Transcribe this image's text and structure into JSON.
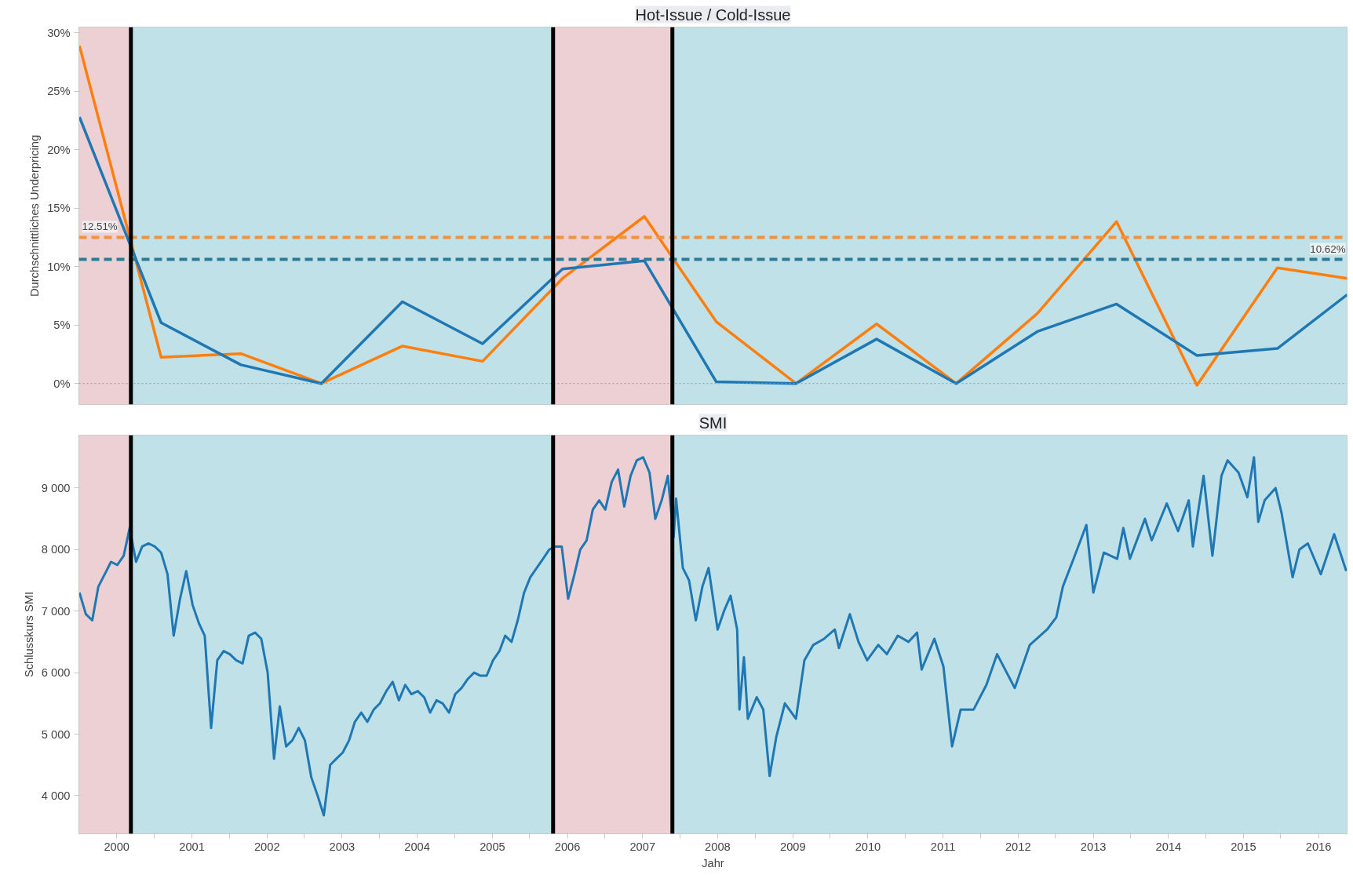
{
  "chart_data": [
    {
      "type": "line",
      "title": "Hot-Issue / Cold-Issue",
      "ylabel": "Durchschnittliches Underpricing",
      "tick_labels": "y",
      "grid": false,
      "x": [
        "1999-07-04",
        "2000-08-04",
        "2001-08-27",
        "2002-09-22",
        "2003-10-21",
        "2004-11-14",
        "2005-12-08",
        "2007-01-10",
        "2007-12-25",
        "2009-01-16",
        "2010-02-12",
        "2011-03-06",
        "2012-04-04",
        "2013-04-24",
        "2014-05-20",
        "2015-06-15",
        "2016-05-19"
      ],
      "series": [
        {
          "color": "#ff7f0e",
          "values": [
            28.9,
            2.25,
            2.55,
            0,
            3.2,
            1.9,
            9.0,
            14.3,
            5.3,
            0,
            5.1,
            0,
            6.0,
            13.85,
            -0.15,
            9.9,
            9.0
          ]
        },
        {
          "color": "#1f77b4",
          "values": [
            22.8,
            5.2,
            1.6,
            0,
            7.0,
            3.4,
            9.8,
            10.5,
            0.15,
            0,
            3.8,
            0,
            4.45,
            6.8,
            2.4,
            3.0,
            7.6
          ]
        }
      ],
      "xlim": [
        "1999-07-01",
        "2016-05-19"
      ],
      "ylim": [
        -1.8,
        30.5
      ],
      "yticks": [
        {
          "value": 0,
          "label": "0%"
        },
        {
          "value": 5,
          "label": "5%"
        },
        {
          "value": 10,
          "label": "10%"
        },
        {
          "value": 15,
          "label": "15%"
        },
        {
          "value": 20,
          "label": "20%"
        },
        {
          "value": 25,
          "label": "25%"
        },
        {
          "value": 30,
          "label": "30%"
        }
      ],
      "bands": [
        {
          "axis": "x",
          "from": "1999-07-01",
          "to": "2000-03-10",
          "color": "#ecd0d3"
        },
        {
          "axis": "x",
          "from": "2000-03-10",
          "to": "2005-10-23",
          "color": "#c0e1e7"
        },
        {
          "axis": "x",
          "from": "2005-10-23",
          "to": "2007-05-26",
          "color": "#ecd0d3"
        },
        {
          "axis": "x",
          "from": "2007-05-26",
          "to": "2016-05-19",
          "color": "#c0e1e7"
        }
      ],
      "ref_lines": [
        {
          "axis": "y",
          "value": 12.51,
          "label": "12.51%",
          "color": "#f5913a",
          "line_style": "dashed"
        },
        {
          "axis": "y",
          "value": 10.62,
          "label": "10.62%",
          "color": "#2b7b99",
          "line_style": "dashed"
        },
        {
          "axis": "y",
          "value": 0,
          "color": "#999999",
          "line_style": "dotted"
        },
        {
          "axis": "x",
          "value": "2000-03-10",
          "color": "#000000",
          "line_style": "solid"
        },
        {
          "axis": "x",
          "value": "2005-10-23",
          "color": "#000000",
          "line_style": "solid"
        },
        {
          "axis": "x",
          "value": "2007-05-26",
          "color": "#000000",
          "line_style": "solid"
        }
      ]
    },
    {
      "type": "line",
      "title": "SMI",
      "ylabel": "Schlusskurs SMI",
      "xlabel": "Jahr",
      "grid": false,
      "x": [
        "1999-07-04",
        "1999-08-04",
        "1999-09-04",
        "1999-10-04",
        "1999-11-04",
        "1999-12-04",
        "2000-01-04",
        "2000-02-04",
        "2000-03-04",
        "2000-04-04",
        "2000-05-04",
        "2000-06-04",
        "2000-07-04",
        "2000-08-04",
        "2000-09-04",
        "2000-10-04",
        "2000-11-04",
        "2000-12-04",
        "2001-01-04",
        "2001-02-04",
        "2001-03-04",
        "2001-04-04",
        "2001-05-04",
        "2001-06-04",
        "2001-07-04",
        "2001-08-04",
        "2001-09-04",
        "2001-10-04",
        "2001-11-04",
        "2001-12-04",
        "2002-01-04",
        "2002-02-04",
        "2002-03-04",
        "2002-04-04",
        "2002-05-04",
        "2002-06-04",
        "2002-07-04",
        "2002-08-04",
        "2002-09-04",
        "2002-10-04",
        "2002-11-04",
        "2002-12-04",
        "2003-01-04",
        "2003-02-04",
        "2003-03-04",
        "2003-04-04",
        "2003-05-04",
        "2003-06-04",
        "2003-07-04",
        "2003-08-04",
        "2003-09-04",
        "2003-10-04",
        "2003-11-04",
        "2003-12-04",
        "2004-01-04",
        "2004-02-04",
        "2004-03-04",
        "2004-04-04",
        "2004-05-04",
        "2004-06-04",
        "2004-07-04",
        "2004-08-04",
        "2004-09-04",
        "2004-10-04",
        "2004-11-04",
        "2004-12-04",
        "2005-01-04",
        "2005-02-04",
        "2005-03-04",
        "2005-04-04",
        "2005-05-04",
        "2005-06-04",
        "2005-07-04",
        "2005-08-04",
        "2005-09-04",
        "2005-10-04",
        "2005-11-04",
        "2005-12-04",
        "2006-01-04",
        "2006-02-04",
        "2006-03-04",
        "2006-04-04",
        "2006-05-04",
        "2006-06-04",
        "2006-07-04",
        "2006-08-04",
        "2006-09-04",
        "2006-10-04",
        "2006-11-04",
        "2006-12-04",
        "2007-01-04",
        "2007-02-04",
        "2007-03-04",
        "2007-04-04",
        "2007-05-04",
        "2007-06-01",
        "2007-06-13",
        "2007-07-16",
        "2007-08-15",
        "2007-09-17",
        "2007-10-19",
        "2007-11-18",
        "2008-01-01",
        "2008-02-01",
        "2008-03-04",
        "2008-04-05",
        "2008-04-16",
        "2008-05-08",
        "2008-05-27",
        "2008-07-09",
        "2008-08-10",
        "2008-09-10",
        "2008-10-12",
        "2008-11-23",
        "2009-01-16",
        "2009-02-26",
        "2009-04-10",
        "2009-06-02",
        "2009-07-24",
        "2009-08-13",
        "2009-10-05",
        "2009-11-16",
        "2009-12-28",
        "2010-02-20",
        "2010-04-03",
        "2010-05-26",
        "2010-07-17",
        "2010-08-28",
        "2010-09-19",
        "2010-11-20",
        "2011-01-03",
        "2011-02-14",
        "2011-03-28",
        "2011-05-30",
        "2011-07-31",
        "2011-09-21",
        "2011-12-16",
        "2012-02-27",
        "2012-05-21",
        "2012-07-05",
        "2012-08-06",
        "2012-09-27",
        "2012-11-28",
        "2013-01-01",
        "2013-02-21",
        "2013-04-27",
        "2013-05-27",
        "2013-06-28",
        "2013-09-09",
        "2013-10-12",
        "2013-12-24",
        "2014-02-17",
        "2014-04-10",
        "2014-04-30",
        "2014-06-21",
        "2014-08-03",
        "2014-09-16",
        "2014-10-16",
        "2014-12-08",
        "2015-01-20",
        "2015-02-21",
        "2015-03-14",
        "2015-04-14",
        "2015-06-06",
        "2015-07-05",
        "2015-08-28",
        "2015-09-30",
        "2015-11-10",
        "2016-01-12",
        "2016-03-17",
        "2016-05-15"
      ],
      "series": [
        {
          "color": "#1f77b4",
          "values": [
            7300,
            6950,
            6850,
            7400,
            7600,
            7800,
            7750,
            7900,
            8350,
            7800,
            8050,
            8100,
            8050,
            7950,
            7600,
            6600,
            7200,
            7650,
            7100,
            6800,
            6600,
            5100,
            6200,
            6350,
            6300,
            6200,
            6150,
            6600,
            6650,
            6550,
            6000,
            4600,
            5450,
            4800,
            4900,
            5100,
            4900,
            4300,
            4000,
            3680,
            4500,
            4600,
            4700,
            4900,
            5200,
            5350,
            5200,
            5400,
            5500,
            5700,
            5850,
            5550,
            5800,
            5650,
            5700,
            5600,
            5350,
            5550,
            5500,
            5350,
            5650,
            5750,
            5900,
            6000,
            5950,
            5950,
            6200,
            6350,
            6600,
            6500,
            6850,
            7300,
            7550,
            7700,
            7850,
            8000,
            8050,
            8050,
            7200,
            7600,
            8000,
            8150,
            8650,
            8800,
            8650,
            9100,
            9300,
            8700,
            9200,
            9450,
            9500,
            9250,
            8500,
            8800,
            9200,
            8200,
            8830,
            7700,
            7500,
            6850,
            7400,
            7700,
            6700,
            7000,
            7250,
            6700,
            5400,
            6250,
            5250,
            5600,
            5400,
            4320,
            4950,
            5500,
            5250,
            6200,
            6450,
            6550,
            6700,
            6400,
            6950,
            6500,
            6200,
            6450,
            6300,
            6600,
            6500,
            6650,
            6050,
            6550,
            6100,
            4800,
            5400,
            5400,
            5800,
            6300,
            5750,
            6450,
            6700,
            6900,
            7400,
            7850,
            8400,
            7300,
            7950,
            7850,
            8350,
            7850,
            8500,
            8150,
            8750,
            8300,
            8800,
            8050,
            9200,
            7900,
            9200,
            9450,
            9250,
            8850,
            9500,
            8450,
            8800,
            9000,
            8600,
            7550,
            8000,
            8100,
            7600,
            8250,
            7650
          ]
        }
      ],
      "xlim": [
        "1999-07-01",
        "2016-05-19"
      ],
      "ylim": [
        3380,
        9860
      ],
      "xticks": [
        {
          "value": "2000-01-01",
          "label": "2000"
        },
        {
          "value": "2000-07-01",
          "label": null
        },
        {
          "value": "2001-01-01",
          "label": "2001"
        },
        {
          "value": "2001-07-01",
          "label": null
        },
        {
          "value": "2002-01-01",
          "label": "2002"
        },
        {
          "value": "2002-07-01",
          "label": null
        },
        {
          "value": "2003-01-01",
          "label": "2003"
        },
        {
          "value": "2003-07-01",
          "label": null
        },
        {
          "value": "2004-01-01",
          "label": "2004"
        },
        {
          "value": "2004-07-01",
          "label": null
        },
        {
          "value": "2005-01-01",
          "label": "2005"
        },
        {
          "value": "2005-07-01",
          "label": null
        },
        {
          "value": "2006-01-01",
          "label": "2006"
        },
        {
          "value": "2006-07-01",
          "label": null
        },
        {
          "value": "2007-01-01",
          "label": "2007"
        },
        {
          "value": "2007-07-01",
          "label": null
        },
        {
          "value": "2008-01-01",
          "label": "2008"
        },
        {
          "value": "2008-07-01",
          "label": null
        },
        {
          "value": "2009-01-01",
          "label": "2009"
        },
        {
          "value": "2009-07-01",
          "label": null
        },
        {
          "value": "2010-01-01",
          "label": "2010"
        },
        {
          "value": "2010-07-01",
          "label": null
        },
        {
          "value": "2011-01-01",
          "label": "2011"
        },
        {
          "value": "2011-07-01",
          "label": null
        },
        {
          "value": "2012-01-01",
          "label": "2012"
        },
        {
          "value": "2012-07-01",
          "label": null
        },
        {
          "value": "2013-01-01",
          "label": "2013"
        },
        {
          "value": "2013-07-01",
          "label": null
        },
        {
          "value": "2014-01-01",
          "label": "2014"
        },
        {
          "value": "2014-07-01",
          "label": null
        },
        {
          "value": "2015-01-01",
          "label": "2015"
        },
        {
          "value": "2015-07-01",
          "label": null
        },
        {
          "value": "2016-01-01",
          "label": "2016"
        }
      ],
      "yticks": [
        {
          "value": 4000,
          "label": "4 000"
        },
        {
          "value": 5000,
          "label": "5 000"
        },
        {
          "value": 6000,
          "label": "6 000"
        },
        {
          "value": 7000,
          "label": "7 000"
        },
        {
          "value": 8000,
          "label": "8 000"
        },
        {
          "value": 9000,
          "label": "9 000"
        }
      ],
      "bands": [
        {
          "axis": "x",
          "from": "1999-07-01",
          "to": "2000-03-10",
          "color": "#ecd0d3"
        },
        {
          "axis": "x",
          "from": "2000-03-10",
          "to": "2005-10-23",
          "color": "#c0e1e7"
        },
        {
          "axis": "x",
          "from": "2005-10-23",
          "to": "2007-05-26",
          "color": "#ecd0d3"
        },
        {
          "axis": "x",
          "from": "2007-05-26",
          "to": "2016-05-19",
          "color": "#c0e1e7"
        }
      ],
      "ref_lines": [
        {
          "axis": "x",
          "value": "2000-03-10",
          "color": "#000000",
          "line_style": "solid"
        },
        {
          "axis": "x",
          "value": "2005-10-23",
          "color": "#000000",
          "line_style": "solid"
        },
        {
          "axis": "x",
          "value": "2007-05-26",
          "color": "#000000",
          "line_style": "solid"
        }
      ]
    }
  ]
}
